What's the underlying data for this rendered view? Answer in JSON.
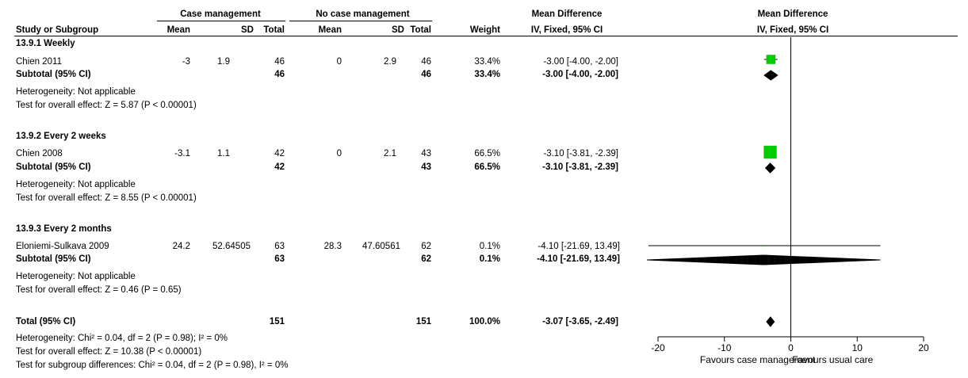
{
  "headers": {
    "group_exp": "Case management",
    "group_ctrl": "No case management",
    "study": "Study or Subgroup",
    "mean": "Mean",
    "sd": "SD",
    "total": "Total",
    "weight": "Weight",
    "md_title": "Mean Difference",
    "md_method": "IV, Fixed, 95% CI",
    "plot_title": "Mean Difference",
    "plot_method": "IV, Fixed, 95% CI"
  },
  "groups": [
    {
      "title": "13.9.1 Weekly",
      "study": {
        "name": "Chien 2011",
        "m1": "-3",
        "sd1": "1.9",
        "n1": "46",
        "m2": "0",
        "sd2": "2.9",
        "n2": "46",
        "weight": "33.4%",
        "ci": "-3.00 [-4.00, -2.00]"
      },
      "subtotal": {
        "label": "Subtotal (95% CI)",
        "n1": "46",
        "n2": "46",
        "weight": "33.4%",
        "ci": "-3.00 [-4.00, -2.00]"
      },
      "het": "Heterogeneity: Not applicable",
      "effect": "Test for overall effect: Z = 5.87 (P < 0.00001)"
    },
    {
      "title": "13.9.2 Every 2 weeks",
      "study": {
        "name": "Chien 2008",
        "m1": "-3.1",
        "sd1": "1.1",
        "n1": "42",
        "m2": "0",
        "sd2": "2.1",
        "n2": "43",
        "weight": "66.5%",
        "ci": "-3.10 [-3.81, -2.39]"
      },
      "subtotal": {
        "label": "Subtotal (95% CI)",
        "n1": "42",
        "n2": "43",
        "weight": "66.5%",
        "ci": "-3.10 [-3.81, -2.39]"
      },
      "het": "Heterogeneity: Not applicable",
      "effect": "Test for overall effect: Z = 8.55 (P < 0.00001)"
    },
    {
      "title": "13.9.3 Every 2 months",
      "study": {
        "name": "Eloniemi-Sulkava 2009",
        "m1": "24.2",
        "sd1": "52.64505",
        "n1": "63",
        "m2": "28.3",
        "sd2": "47.60561",
        "n2": "62",
        "weight": "0.1%",
        "ci": "-4.10 [-21.69, 13.49]"
      },
      "subtotal": {
        "label": "Subtotal (95% CI)",
        "n1": "63",
        "n2": "62",
        "weight": "0.1%",
        "ci": "-4.10 [-21.69, 13.49]"
      },
      "het": "Heterogeneity: Not applicable",
      "effect": "Test for overall effect: Z = 0.46 (P = 0.65)"
    }
  ],
  "total": {
    "label": "Total (95% CI)",
    "n1": "151",
    "n2": "151",
    "weight": "100.0%",
    "ci": "-3.07 [-3.65, -2.49]"
  },
  "footer": {
    "het": "Heterogeneity: Chi² = 0.04, df = 2 (P = 0.98); I² = 0%",
    "effect": "Test for overall effect: Z = 10.38 (P < 0.00001)",
    "subgroup": "Test for subgroup differences: Chi² = 0.04, df = 2 (P = 0.98), I² = 0%"
  },
  "chart_data": {
    "type": "forest",
    "xlim": [
      -20,
      20
    ],
    "xticks": [
      "-20",
      "-10",
      "0",
      "10",
      "20"
    ],
    "xtick_values": [
      -20,
      -10,
      0,
      10,
      20
    ],
    "left_label": "Favours case management",
    "right_label": "Favours usual care",
    "study_color": "#00cc00",
    "studies": [
      {
        "name": "Chien 2011",
        "est": -3.0,
        "lo": -4.0,
        "hi": -2.0,
        "weight": 33.4
      },
      {
        "name": "Chien 2008",
        "est": -3.1,
        "lo": -3.81,
        "hi": -2.39,
        "weight": 66.5
      },
      {
        "name": "Eloniemi-Sulkava 2009",
        "est": -4.1,
        "lo": -21.69,
        "hi": 13.49,
        "weight": 0.1
      }
    ],
    "subtotals": [
      {
        "est": -3.0,
        "lo": -4.0,
        "hi": -2.0
      },
      {
        "est": -3.1,
        "lo": -3.81,
        "hi": -2.39
      },
      {
        "est": -4.1,
        "lo": -21.69,
        "hi": 13.49
      }
    ],
    "total": {
      "est": -3.07,
      "lo": -3.65,
      "hi": -2.49
    }
  }
}
